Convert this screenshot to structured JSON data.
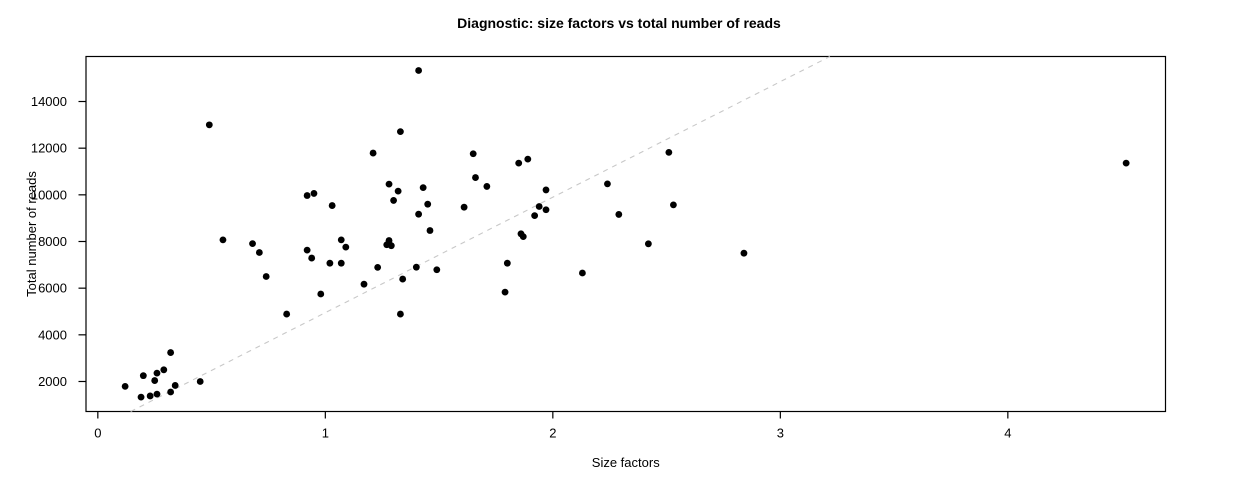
{
  "chart_data": {
    "type": "scatter",
    "title": "Diagnostic: size factors vs total number of reads",
    "xlabel": "Size factors",
    "ylabel": "Total number of reads",
    "x_ticks": [
      0,
      1,
      2,
      3,
      4
    ],
    "y_ticks": [
      2000,
      4000,
      6000,
      8000,
      10000,
      12000,
      14000
    ],
    "xlim": [
      -0.052,
      4.693
    ],
    "ylim": [
      714,
      15929
    ],
    "grid": false,
    "legend": "none",
    "point_color": "#000000",
    "box_color": "#000000",
    "background_color": "#ffffff",
    "reference_line": {
      "style": "dashed",
      "color": "#c8c8c8",
      "slope": 4950,
      "intercept": 0
    },
    "points": [
      [
        0.12,
        1790
      ],
      [
        0.19,
        1330
      ],
      [
        0.2,
        2250
      ],
      [
        0.23,
        1380
      ],
      [
        0.25,
        2040
      ],
      [
        0.26,
        2360
      ],
      [
        0.26,
        1460
      ],
      [
        0.29,
        2500
      ],
      [
        0.32,
        3240
      ],
      [
        0.32,
        1550
      ],
      [
        0.34,
        1830
      ],
      [
        0.45,
        2000
      ],
      [
        0.49,
        13000
      ],
      [
        0.55,
        8070
      ],
      [
        0.68,
        7910
      ],
      [
        0.71,
        7530
      ],
      [
        0.74,
        6500
      ],
      [
        0.83,
        4890
      ],
      [
        0.92,
        9970
      ],
      [
        0.95,
        10060
      ],
      [
        0.92,
        7630
      ],
      [
        0.94,
        7290
      ],
      [
        0.98,
        5750
      ],
      [
        1.02,
        7070
      ],
      [
        1.03,
        9540
      ],
      [
        1.07,
        7070
      ],
      [
        1.07,
        8070
      ],
      [
        1.09,
        7760
      ],
      [
        1.17,
        6170
      ],
      [
        1.21,
        11790
      ],
      [
        1.23,
        6890
      ],
      [
        1.27,
        7860
      ],
      [
        1.28,
        8040
      ],
      [
        1.29,
        7820
      ],
      [
        1.28,
        10460
      ],
      [
        1.3,
        9760
      ],
      [
        1.32,
        10160
      ],
      [
        1.33,
        12710
      ],
      [
        1.33,
        4890
      ],
      [
        1.34,
        6390
      ],
      [
        1.4,
        6900
      ],
      [
        1.41,
        9170
      ],
      [
        1.41,
        15330
      ],
      [
        1.43,
        10310
      ],
      [
        1.45,
        9600
      ],
      [
        1.46,
        8470
      ],
      [
        1.49,
        6790
      ],
      [
        1.61,
        9470
      ],
      [
        1.65,
        11760
      ],
      [
        1.66,
        10740
      ],
      [
        1.71,
        10360
      ],
      [
        1.79,
        5830
      ],
      [
        1.8,
        7070
      ],
      [
        1.85,
        11360
      ],
      [
        1.89,
        11530
      ],
      [
        1.86,
        8330
      ],
      [
        1.87,
        8210
      ],
      [
        1.92,
        9110
      ],
      [
        1.94,
        9500
      ],
      [
        1.97,
        9360
      ],
      [
        1.97,
        10210
      ],
      [
        2.13,
        6650
      ],
      [
        2.24,
        10470
      ],
      [
        2.29,
        9160
      ],
      [
        2.42,
        7900
      ],
      [
        2.51,
        11820
      ],
      [
        2.53,
        9570
      ],
      [
        2.84,
        7500
      ],
      [
        4.52,
        11360
      ]
    ]
  }
}
